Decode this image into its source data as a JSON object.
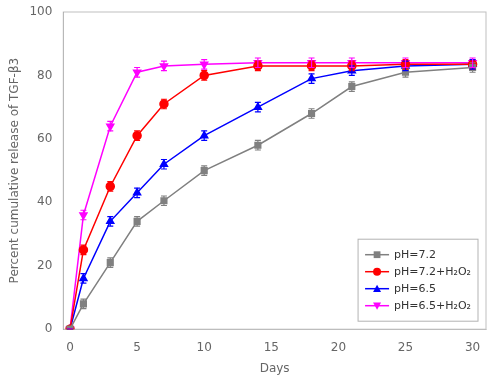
{
  "chart_data": {
    "type": "line",
    "xlabel": "Days",
    "ylabel": "Percent cumulative release of TGF-β3",
    "x": [
      0,
      1,
      3,
      5,
      7,
      10,
      14,
      18,
      21,
      25,
      30
    ],
    "xlim": [
      -0.5,
      31
    ],
    "ylim": [
      0,
      100
    ],
    "xticks": [
      0,
      5,
      10,
      15,
      20,
      25,
      30
    ],
    "yticks": [
      0,
      20,
      40,
      60,
      80,
      100
    ],
    "grid": false,
    "legend": "lower right",
    "series": [
      {
        "name": "pH=7.2",
        "color": "#808080",
        "marker": "square",
        "values": [
          0,
          8,
          21,
          34,
          40.5,
          50,
          58,
          68,
          76.5,
          81,
          82.5
        ],
        "yerr": [
          0,
          1.5,
          1.5,
          1.5,
          1.5,
          1.5,
          1.5,
          1.5,
          1.5,
          1.5,
          1.5
        ]
      },
      {
        "name": "pH=7.2+H₂O₂",
        "color": "#FF0000",
        "marker": "circle",
        "values": [
          0,
          25,
          45,
          61,
          71,
          80,
          83,
          83,
          83,
          83.5,
          83.5
        ],
        "yerr": [
          0,
          1.5,
          1.5,
          1.5,
          1.5,
          1.5,
          1.5,
          1.5,
          1.5,
          1.5,
          1.5
        ]
      },
      {
        "name": "pH=6.5",
        "color": "#0000FF",
        "marker": "triangle-up",
        "values": [
          0,
          16,
          34,
          43,
          52,
          61,
          70,
          79,
          81.5,
          83,
          83.5
        ],
        "yerr": [
          0,
          1.5,
          1.5,
          1.5,
          1.5,
          1.5,
          1.5,
          1.5,
          1.5,
          1.5,
          1.5
        ]
      },
      {
        "name": "pH=6.5+H₂O₂",
        "color": "#FF00FF",
        "marker": "triangle-down",
        "values": [
          0,
          36,
          64,
          81,
          83,
          83.5,
          84,
          84,
          84,
          84,
          84
        ],
        "yerr": [
          0,
          1.5,
          1.5,
          1.5,
          1.5,
          1.5,
          1.5,
          1.5,
          1.5,
          1.5,
          1.5
        ]
      }
    ]
  }
}
